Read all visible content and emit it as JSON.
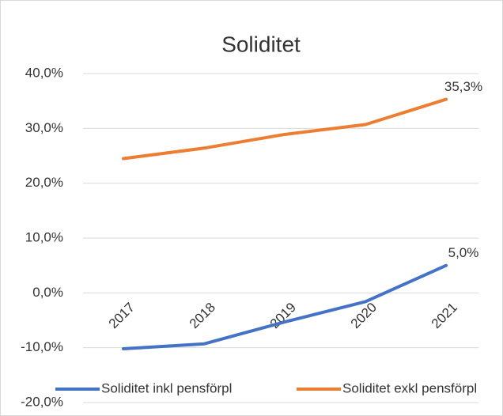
{
  "chart_data": {
    "type": "line",
    "title": "Soliditet",
    "categories": [
      "2017",
      "2018",
      "2019",
      "2020",
      "2021"
    ],
    "series": [
      {
        "name": "Soliditet inkl pensförpl",
        "color": "#4472c4",
        "values": [
          -10.2,
          -9.3,
          -5.3,
          -1.6,
          5.0
        ],
        "value_labels": [
          null,
          null,
          null,
          null,
          "5,0%"
        ]
      },
      {
        "name": "Soliditet exkl pensförpl",
        "color": "#ed7d31",
        "values": [
          24.5,
          26.4,
          28.9,
          30.7,
          35.3
        ],
        "value_labels": [
          null,
          null,
          null,
          null,
          "35,3%"
        ]
      }
    ],
    "ylim": [
      -20,
      40
    ],
    "yticks": [
      {
        "value": -20,
        "label": "-20,0%"
      },
      {
        "value": -10,
        "label": "-10,0%"
      },
      {
        "value": 0,
        "label": "0,0%"
      },
      {
        "value": 10,
        "label": "10,0%"
      },
      {
        "value": 20,
        "label": "20,0%"
      },
      {
        "value": 30,
        "label": "30,0%"
      },
      {
        "value": 40,
        "label": "40,0%"
      }
    ],
    "grid": true,
    "legend": "bottom"
  }
}
